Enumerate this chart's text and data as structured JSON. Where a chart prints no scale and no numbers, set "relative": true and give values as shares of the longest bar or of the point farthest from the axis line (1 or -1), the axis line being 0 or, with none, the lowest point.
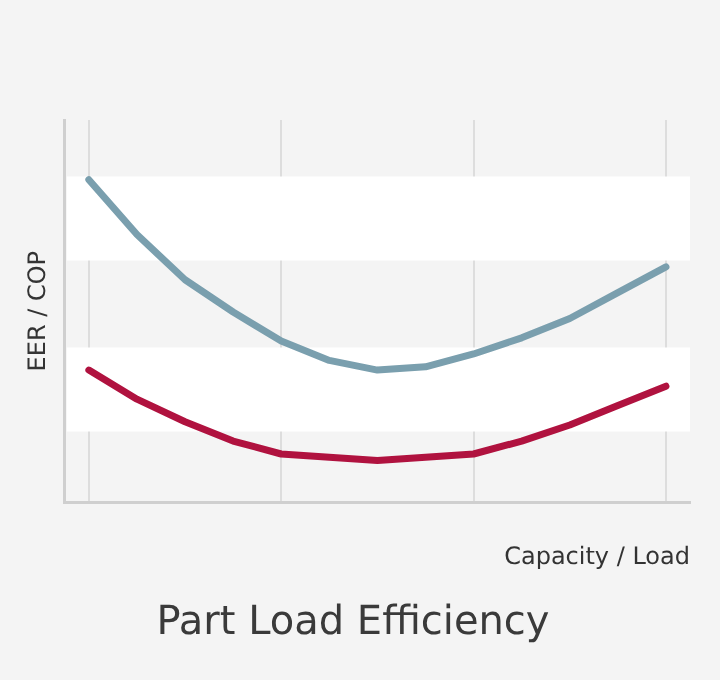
{
  "chart_data": {
    "type": "line",
    "title": "Part Load Efficiency",
    "xlabel": "Capacity / Load",
    "ylabel": "EER / COP",
    "relative": true,
    "categories": [
      null,
      null,
      null,
      null,
      null,
      null,
      null,
      null,
      null,
      null,
      null,
      null,
      null
    ],
    "series": [
      {
        "color": "#7a9fae",
        "values": [
          1,
          0.83,
          0.69,
          0.59,
          0.5,
          0.44,
          0.41,
          0.42,
          0.46,
          0.51,
          0.57,
          0.65,
          0.73
        ]
      },
      {
        "color": "#b0123f",
        "values": [
          0.41,
          0.32,
          0.25,
          0.19,
          0.15,
          0.14,
          0.13,
          0.14,
          0.15,
          0.19,
          0.24,
          0.3,
          0.36
        ]
      }
    ],
    "bands": [
      {
        "axis": "y",
        "from": 0.75,
        "to": 1.01,
        "color": "#ffffff"
      },
      {
        "axis": "y",
        "from": 0.22,
        "to": 0.48,
        "color": "#ffffff"
      }
    ],
    "grid": "x",
    "marker": "none",
    "line_style": "solid",
    "legend": false
  }
}
